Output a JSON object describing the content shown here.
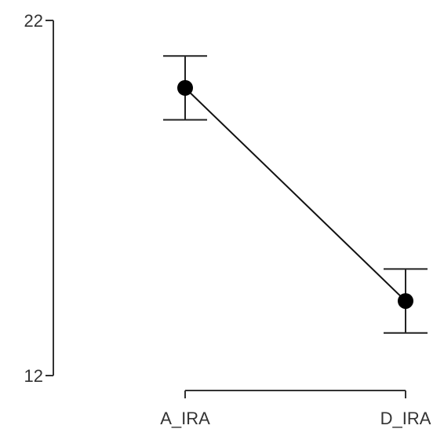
{
  "chart_data": {
    "type": "line",
    "title": "",
    "xlabel": "",
    "ylabel": "",
    "categories": [
      "A_IRA",
      "D_IRA"
    ],
    "ylim": [
      12,
      22
    ],
    "yticks": [
      12,
      22
    ],
    "series": [
      {
        "values": [
          20.1,
          14.1
        ],
        "error_low": [
          19.2,
          13.2
        ],
        "error_high": [
          21.0,
          15.0
        ]
      }
    ],
    "grid": false,
    "legend": "none",
    "colors": {
      "line": "#111111",
      "marker": "#000000",
      "axis": "#333333",
      "text": "#333333"
    }
  }
}
